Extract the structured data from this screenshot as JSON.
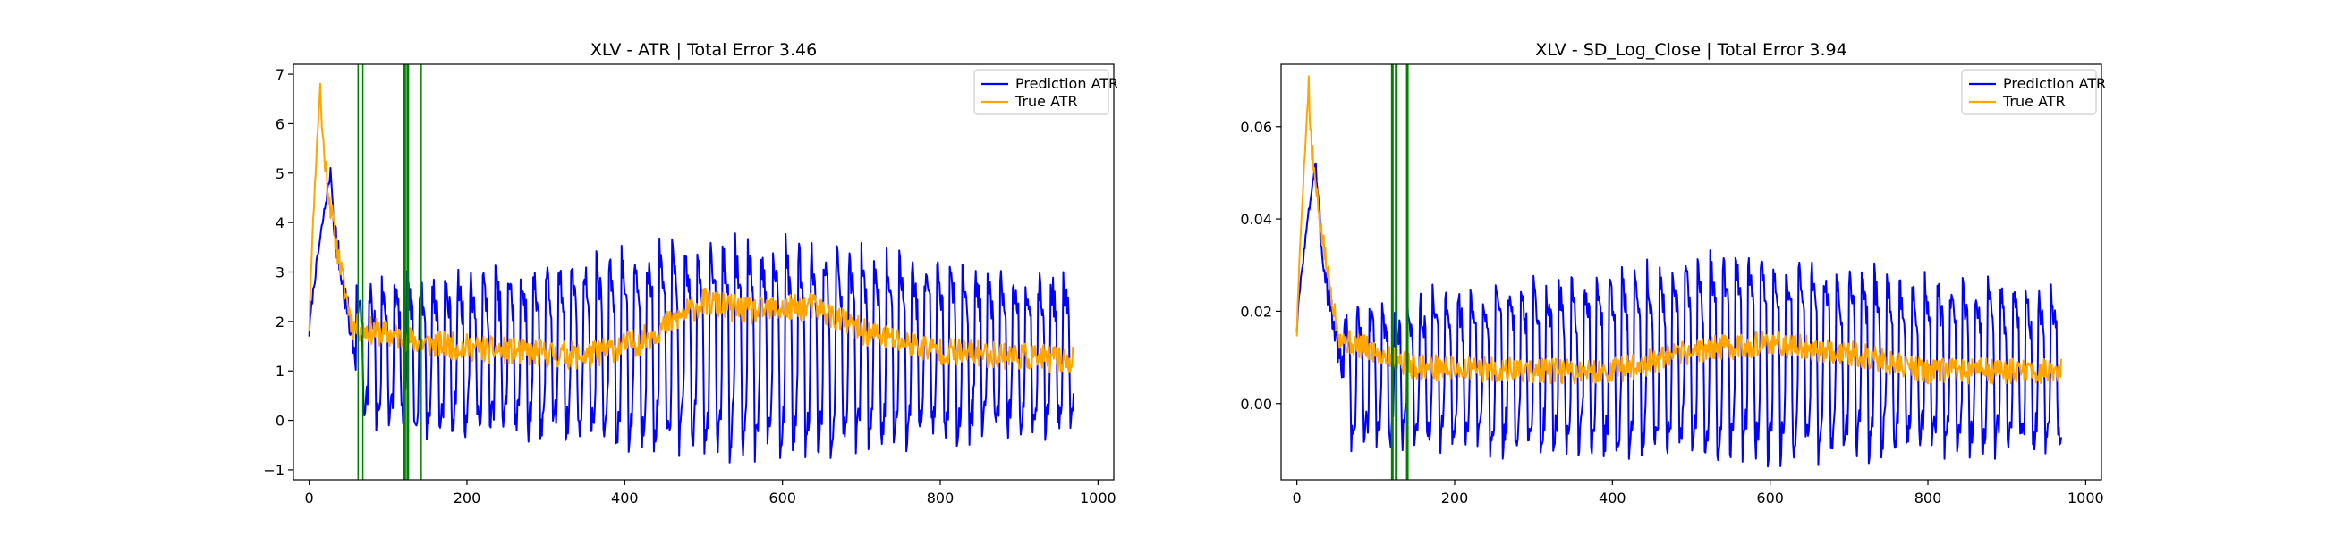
{
  "figure": {
    "background": "#ffffff"
  },
  "chart_data": [
    {
      "type": "line",
      "title": "XLV - ATR | Total Error 3.46",
      "xlabel": "",
      "ylabel": "",
      "xlim": [
        -20,
        1020
      ],
      "ylim": [
        -1.2,
        7.2
      ],
      "xticks": [
        0,
        200,
        400,
        600,
        800,
        1000
      ],
      "yticks": [
        -1,
        0,
        1,
        2,
        3,
        4,
        5,
        6,
        7
      ],
      "ytick_decimals": 0,
      "grid": false,
      "legend_position": "top-right",
      "series": [
        {
          "name": "Prediction ATR",
          "color": "#0000ff",
          "shape": {
            "n": 970,
            "start": 1.75,
            "peak_x": 28,
            "peak_y": 5.1,
            "settle_x": 60,
            "period": 16,
            "wave_start": 60,
            "high_base": 2.6,
            "low_base": 0.0,
            "high_amp": 0.9,
            "low_amp": 0.55,
            "env": [
              [
                60,
                0.0
              ],
              [
                200,
                0.25
              ],
              [
                480,
                0.9
              ],
              [
                560,
                1.0
              ],
              [
                660,
                0.85
              ],
              [
                800,
                0.45
              ],
              [
                970,
                0.25
              ]
            ],
            "noise": 0.35,
            "seed": 7
          }
        },
        {
          "name": "True ATR",
          "color": "#ffa500",
          "shape": {
            "n": 970,
            "start": 1.85,
            "peak_x": 14,
            "peak_y": 6.8,
            "settle_x": 55,
            "base": [
              [
                55,
                1.9
              ],
              [
                150,
                1.55
              ],
              [
                250,
                1.4
              ],
              [
                350,
                1.3
              ],
              [
                420,
                1.6
              ],
              [
                500,
                2.4
              ],
              [
                560,
                2.2
              ],
              [
                640,
                2.3
              ],
              [
                700,
                1.8
              ],
              [
                800,
                1.4
              ],
              [
                900,
                1.3
              ],
              [
                970,
                1.2
              ]
            ],
            "noise": 0.28,
            "seed": 11
          }
        }
      ],
      "vlines": [
        {
          "x": 62,
          "width": 1.5
        },
        {
          "x": 68,
          "width": 1.5
        },
        {
          "x": 121,
          "width": 3
        },
        {
          "x": 125,
          "width": 3
        },
        {
          "x": 142,
          "width": 1.5
        }
      ]
    },
    {
      "type": "line",
      "title": "XLV - SD_Log_Close | Total Error 3.94",
      "xlabel": "",
      "ylabel": "",
      "xlim": [
        -20,
        1020
      ],
      "ylim": [
        -0.0165,
        0.0735
      ],
      "xticks": [
        0,
        200,
        400,
        600,
        800,
        1000
      ],
      "yticks": [
        0.0,
        0.02,
        0.04,
        0.06
      ],
      "ytick_decimals": 2,
      "grid": false,
      "legend_position": "top-right",
      "series": [
        {
          "name": "Prediction ATR",
          "color": "#0000ff",
          "shape": {
            "n": 970,
            "start": 0.016,
            "peak_x": 24,
            "peak_y": 0.053,
            "settle_x": 60,
            "period": 16,
            "wave_start": 60,
            "high_base": 0.019,
            "low_base": -0.008,
            "high_amp": 0.014,
            "low_amp": 0.003,
            "env": [
              [
                60,
                0.0
              ],
              [
                200,
                0.3
              ],
              [
                400,
                0.55
              ],
              [
                560,
                0.9
              ],
              [
                620,
                0.8
              ],
              [
                800,
                0.45
              ],
              [
                970,
                0.3
              ]
            ],
            "noise": 0.0035,
            "seed": 3
          }
        },
        {
          "name": "True ATR",
          "color": "#ffa500",
          "shape": {
            "n": 970,
            "start": 0.015,
            "peak_x": 15,
            "peak_y": 0.069,
            "settle_x": 55,
            "base": [
              [
                55,
                0.014
              ],
              [
                150,
                0.008
              ],
              [
                300,
                0.007
              ],
              [
                400,
                0.007
              ],
              [
                520,
                0.012
              ],
              [
                600,
                0.013
              ],
              [
                700,
                0.011
              ],
              [
                800,
                0.007
              ],
              [
                970,
                0.007
              ]
            ],
            "noise": 0.0028,
            "seed": 5
          }
        }
      ],
      "vlines": [
        {
          "x": 121,
          "width": 3
        },
        {
          "x": 126,
          "width": 3
        },
        {
          "x": 140,
          "width": 3
        }
      ]
    }
  ]
}
